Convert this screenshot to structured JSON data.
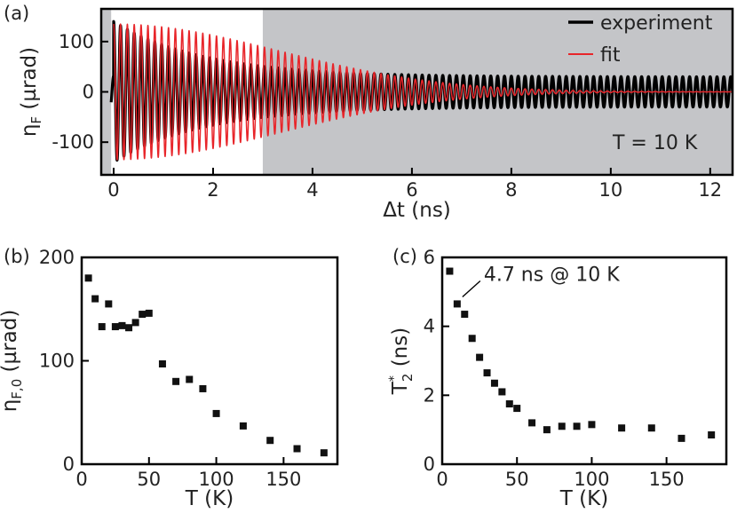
{
  "chart_data": [
    {
      "id": "a",
      "type": "line",
      "panel_label": "(a)",
      "xlabel": "Δt (ns)",
      "ylabel_main": "η",
      "ylabel_sub": "F",
      "ylabel_unit": " (µrad)",
      "xlim": [
        -0.25,
        12.45
      ],
      "ylim": [
        -165,
        165
      ],
      "xticks": [
        0,
        2,
        4,
        6,
        8,
        10,
        12
      ],
      "yticks": [
        -100,
        0,
        100
      ],
      "shaded_region": {
        "x_from": -0.25,
        "x_to": 3.0,
        "color_outside": "#c4c5c8",
        "note_x_from_white": -0.05
      },
      "annotation": "T = 10 K",
      "legend_position": "top-right",
      "series": [
        {
          "name": "experiment",
          "color": "#000000",
          "model": {
            "frequency_GHz": 7.25,
            "amplitude_0": 140,
            "amplitude_end": 30,
            "decay_ns": 1.8,
            "offset_amp": 32
          },
          "x_range": [
            -0.05,
            12.45
          ]
        },
        {
          "name": "fit",
          "color": "#e8252a",
          "model": {
            "frequency_GHz": 7.25,
            "amplitude_0": 135,
            "decay_ns": 4.7
          },
          "x_range": [
            0.0,
            12.45
          ]
        }
      ]
    },
    {
      "id": "b",
      "type": "scatter",
      "panel_label": "(b)",
      "xlabel": "T (K)",
      "ylabel_main": "η",
      "ylabel_sub": "F,0",
      "ylabel_unit": " (µrad)",
      "xlim": [
        0,
        190
      ],
      "ylim": [
        0,
        200
      ],
      "xticks": [
        0,
        50,
        100,
        150
      ],
      "yticks": [
        0,
        100,
        200
      ],
      "marker": "square",
      "color": "#111111",
      "points": [
        [
          5,
          180
        ],
        [
          10,
          160
        ],
        [
          15,
          133
        ],
        [
          20,
          155
        ],
        [
          25,
          133
        ],
        [
          30,
          134
        ],
        [
          35,
          132
        ],
        [
          40,
          137
        ],
        [
          45,
          145
        ],
        [
          50,
          146
        ],
        [
          60,
          97
        ],
        [
          70,
          80
        ],
        [
          80,
          82
        ],
        [
          90,
          73
        ],
        [
          100,
          49
        ],
        [
          120,
          37
        ],
        [
          140,
          23
        ],
        [
          160,
          15
        ],
        [
          180,
          11
        ]
      ]
    },
    {
      "id": "c",
      "type": "scatter",
      "panel_label": "(c)",
      "xlabel": "T (K)",
      "ylabel_main": "T",
      "ylabel_sup": "*",
      "ylabel_sub": "2",
      "ylabel_unit": " (ns)",
      "xlim": [
        0,
        190
      ],
      "ylim": [
        0,
        6
      ],
      "xticks": [
        0,
        50,
        100,
        150
      ],
      "yticks": [
        0,
        2,
        4,
        6
      ],
      "marker": "square",
      "color": "#111111",
      "annotation": "4.7 ns @ 10 K",
      "annotation_target": [
        10,
        4.7
      ],
      "points": [
        [
          5,
          5.6
        ],
        [
          10,
          4.65
        ],
        [
          15,
          4.35
        ],
        [
          20,
          3.65
        ],
        [
          25,
          3.1
        ],
        [
          30,
          2.65
        ],
        [
          35,
          2.35
        ],
        [
          40,
          2.1
        ],
        [
          45,
          1.75
        ],
        [
          50,
          1.62
        ],
        [
          60,
          1.2
        ],
        [
          70,
          1.0
        ],
        [
          80,
          1.1
        ],
        [
          90,
          1.1
        ],
        [
          100,
          1.15
        ],
        [
          120,
          1.05
        ],
        [
          140,
          1.05
        ],
        [
          160,
          0.75
        ],
        [
          180,
          0.85
        ]
      ]
    }
  ]
}
